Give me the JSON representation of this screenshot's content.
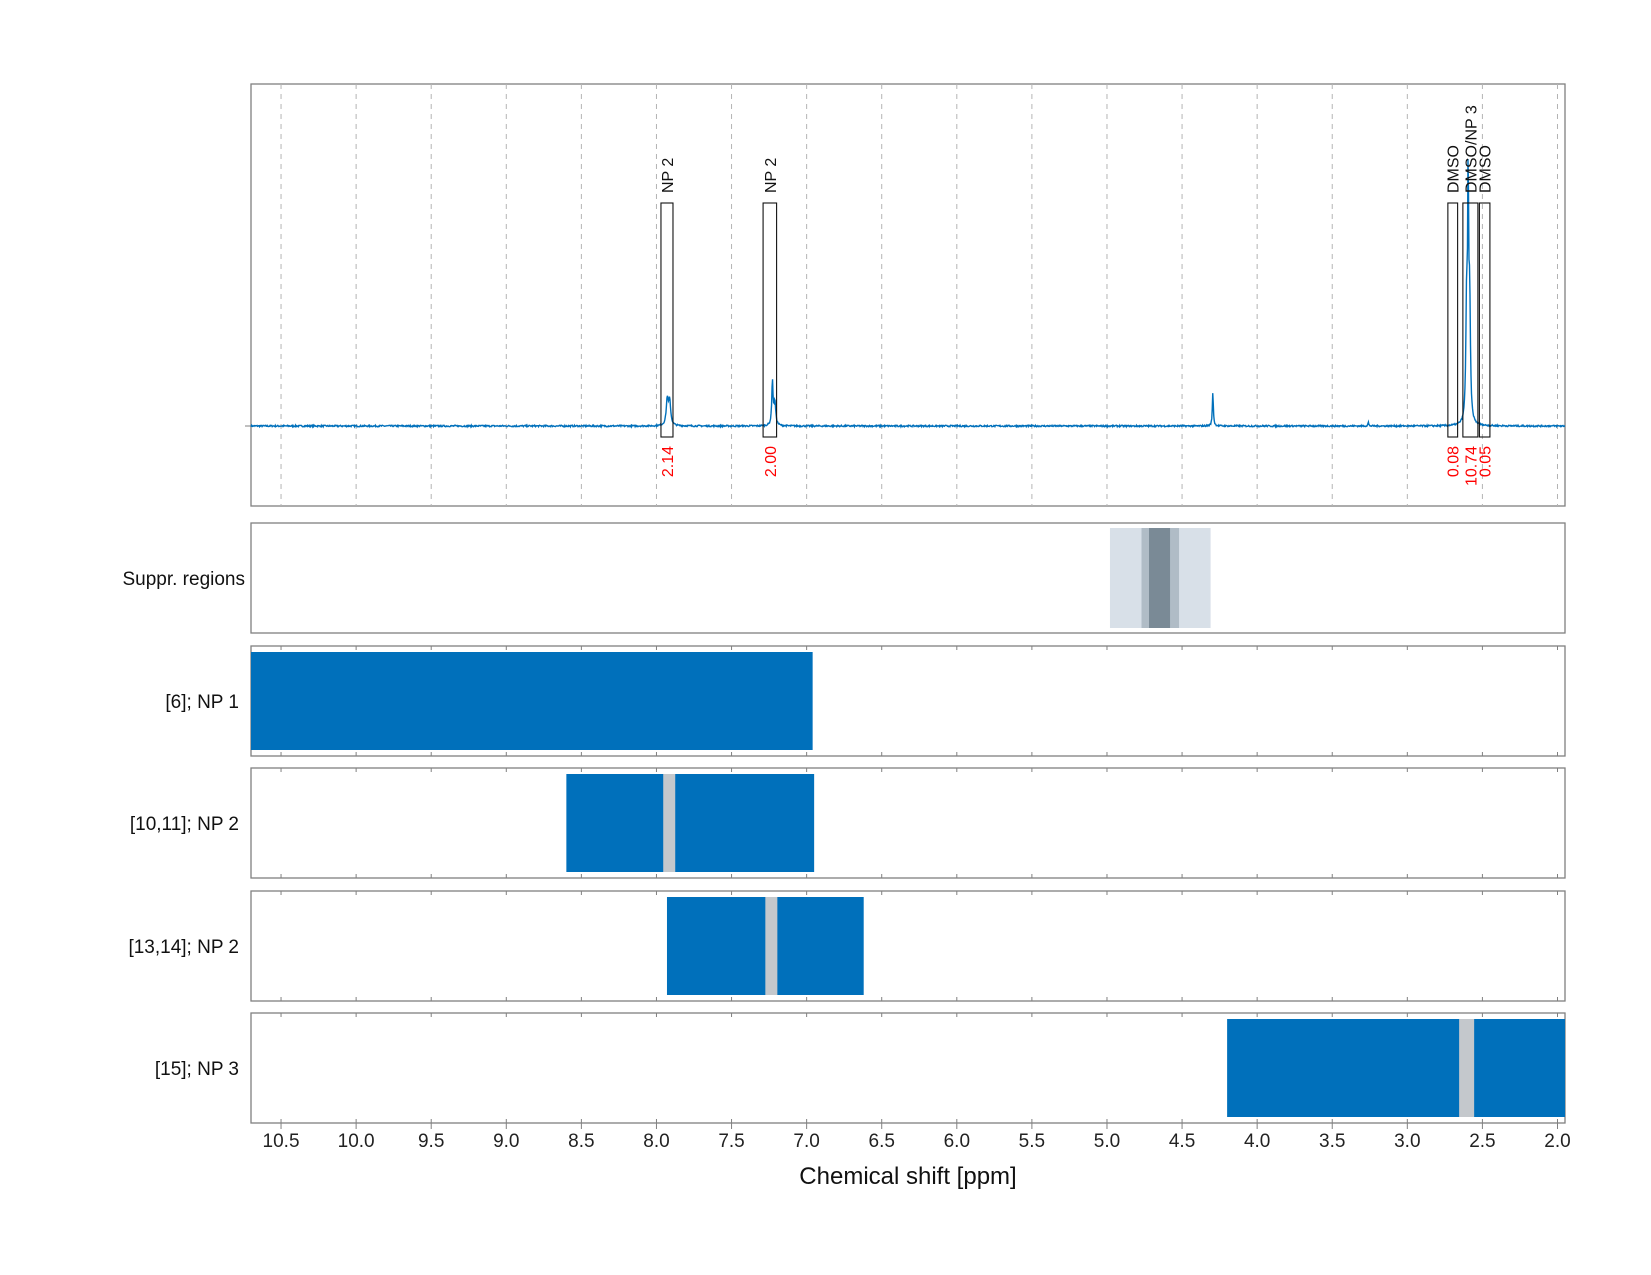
{
  "chart_data": {
    "type": "line",
    "xlabel": "Chemical shift [ppm]",
    "xlim": [
      10.7,
      1.95
    ],
    "x_ticks": [
      "10.5",
      "10.0",
      "9.5",
      "9.0",
      "8.5",
      "8.0",
      "7.5",
      "7.0",
      "6.5",
      "6.0",
      "5.5",
      "5.0",
      "4.5",
      "4.0",
      "3.5",
      "3.0",
      "2.5",
      "2.0"
    ],
    "grid": true,
    "colors": {
      "spectrum": "#0070bb",
      "block": "#0070bb",
      "gap": "#c4c8cc",
      "integral_text": "#ff0000",
      "suppr_light": "#d8e0e8",
      "suppr_mid": "#b0bcc6",
      "suppr_dark": "#7a8a96"
    },
    "spectrum": {
      "baseline": 0,
      "peaks": [
        {
          "ppm": 7.928,
          "height": 0.1,
          "width": 0.008
        },
        {
          "ppm": 7.912,
          "height": 0.09,
          "width": 0.008
        },
        {
          "ppm": 7.228,
          "height": 0.17,
          "width": 0.005
        },
        {
          "ppm": 7.212,
          "height": 0.09,
          "width": 0.007
        },
        {
          "ppm": 4.295,
          "height": 0.13,
          "width": 0.004
        },
        {
          "ppm": 3.26,
          "height": 0.015,
          "width": 0.003
        },
        {
          "ppm": 2.595,
          "height": 0.85,
          "width": 0.004
        },
        {
          "ppm": 2.605,
          "height": 0.45,
          "width": 0.006
        },
        {
          "ppm": 2.585,
          "height": 0.45,
          "width": 0.006
        }
      ]
    },
    "peak_annotations": [
      {
        "label": "NP 2",
        "integral": "2.14",
        "from": 7.97,
        "to": 7.89
      },
      {
        "label": "NP 2",
        "integral": "2.00",
        "from": 7.29,
        "to": 7.2
      },
      {
        "label": "DMSO",
        "integral": "0.08",
        "from": 2.73,
        "to": 2.665
      },
      {
        "label": "DMSO/NP 3",
        "integral": "10.74",
        "from": 2.63,
        "to": 2.53
      },
      {
        "label": "DMSO",
        "integral": "0.05",
        "from": 2.52,
        "to": 2.45
      }
    ],
    "suppression_regions": {
      "label": "Suppr. regions",
      "bands": [
        {
          "from": 4.98,
          "to": 4.31,
          "tone": "light"
        },
        {
          "from": 4.77,
          "to": 4.52,
          "tone": "mid"
        },
        {
          "from": 4.72,
          "to": 4.58,
          "tone": "dark"
        }
      ]
    },
    "rows": [
      {
        "label": "[6]; NP 1",
        "blocks": [
          {
            "from": 10.7,
            "to": 6.96
          }
        ],
        "gaps": []
      },
      {
        "label": "[10,11]; NP 2",
        "blocks": [
          {
            "from": 8.6,
            "to": 6.95
          }
        ],
        "gaps": [
          {
            "from": 7.955,
            "to": 7.875
          }
        ]
      },
      {
        "label": "[13,14]; NP 2",
        "blocks": [
          {
            "from": 7.93,
            "to": 6.62
          }
        ],
        "gaps": [
          {
            "from": 7.275,
            "to": 7.195
          }
        ]
      },
      {
        "label": "[15]; NP 3",
        "blocks": [
          {
            "from": 4.2,
            "to": 1.95
          }
        ],
        "gaps": [
          {
            "from": 2.655,
            "to": 2.555
          }
        ]
      }
    ]
  }
}
